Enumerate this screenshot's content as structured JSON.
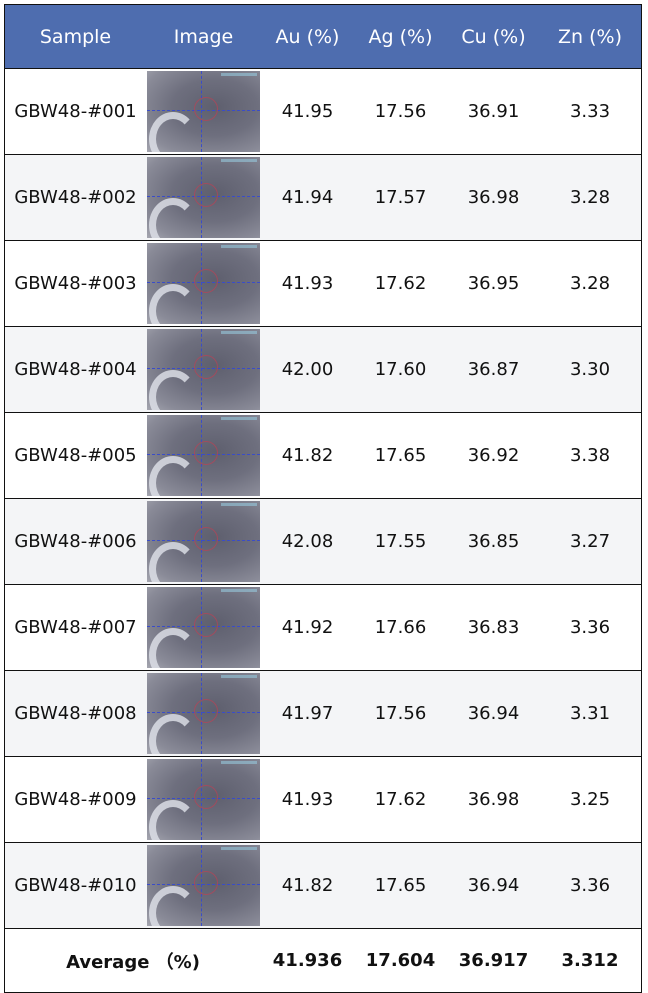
{
  "table": {
    "headers": [
      "Sample",
      "Image",
      "Au (%)",
      "Ag (%)",
      "Cu (%)",
      "Zn (%)"
    ],
    "header_color": "#4e6daf",
    "rows": [
      {
        "sample": "GBW48-#001",
        "au": "41.95",
        "ag": "17.56",
        "cu": "36.91",
        "zn": "3.33"
      },
      {
        "sample": "GBW48-#002",
        "au": "41.94",
        "ag": "17.57",
        "cu": "36.98",
        "zn": "3.28"
      },
      {
        "sample": "GBW48-#003",
        "au": "41.93",
        "ag": "17.62",
        "cu": "36.95",
        "zn": "3.28"
      },
      {
        "sample": "GBW48-#004",
        "au": "42.00",
        "ag": "17.60",
        "cu": "36.87",
        "zn": "3.30"
      },
      {
        "sample": "GBW48-#005",
        "au": "41.82",
        "ag": "17.65",
        "cu": "36.92",
        "zn": "3.38"
      },
      {
        "sample": "GBW48-#006",
        "au": "42.08",
        "ag": "17.55",
        "cu": "36.85",
        "zn": "3.27"
      },
      {
        "sample": "GBW48-#007",
        "au": "41.92",
        "ag": "17.66",
        "cu": "36.83",
        "zn": "3.36"
      },
      {
        "sample": "GBW48-#008",
        "au": "41.97",
        "ag": "17.56",
        "cu": "36.94",
        "zn": "3.31"
      },
      {
        "sample": "GBW48-#009",
        "au": "41.93",
        "ag": "17.62",
        "cu": "36.98",
        "zn": "3.25"
      },
      {
        "sample": "GBW48-#010",
        "au": "41.82",
        "ag": "17.65",
        "cu": "36.94",
        "zn": "3.36"
      }
    ],
    "average": {
      "label": "Average （%)",
      "au": "41.936",
      "ag": "17.604",
      "cu": "36.917",
      "zn": "3.312"
    }
  }
}
